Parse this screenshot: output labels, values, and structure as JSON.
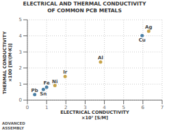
{
  "chart_data": {
    "type": "scatter",
    "title": "ELECTRICAL AND THERMAL CONDUCTIVITY\nOF COMMON PCB METALS",
    "x_label": "ELECTRICAL CONDUCTIVITY\n×10⁷ [S/M]",
    "y_label": "THERMAL CONDUCTIVITY\n×100 [W/(M·K)]",
    "annotations": [
      "ADVANCED\nASSEMBLY"
    ],
    "labels": [
      "Pb",
      "Sn",
      "Fe",
      "Ni",
      "Ir",
      "Al",
      "Cu",
      "Ag"
    ],
    "x": [
      0.38,
      0.83,
      1.0,
      1.43,
      1.96,
      3.8,
      5.96,
      6.3
    ],
    "values": [
      0.35,
      0.67,
      0.8,
      0.91,
      1.47,
      2.37,
      4.01,
      4.29
    ],
    "colors": [
      "#4a7fa5",
      "#4a7fa5",
      "#4a7fa5",
      "#c8a44a",
      "#c8a44a",
      "#c8a44a",
      "#4a7fa5",
      "#c8a44a"
    ],
    "xlim": [
      0,
      7
    ],
    "ylim": [
      0,
      5
    ],
    "xticks": [
      0,
      1,
      2,
      3,
      4,
      5,
      6,
      7
    ],
    "yticks": [
      0,
      1,
      2,
      3,
      4,
      5
    ],
    "grid": true
  }
}
